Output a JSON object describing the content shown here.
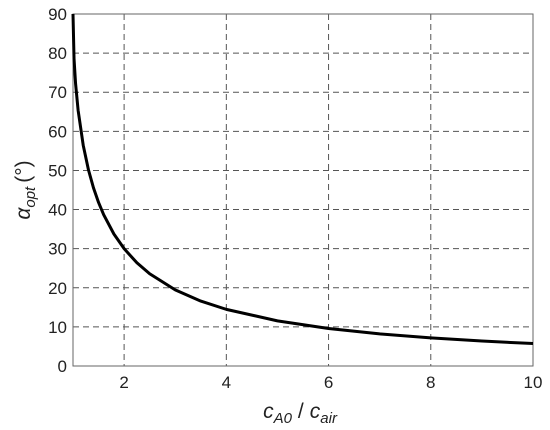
{
  "chart_data": {
    "type": "line",
    "x": [
      1,
      1.02,
      1.05,
      1.1,
      1.2,
      1.3,
      1.4,
      1.5,
      1.6,
      1.8,
      2,
      2.25,
      2.5,
      3,
      3.5,
      4,
      5,
      6,
      7,
      8,
      9,
      10
    ],
    "series": [
      {
        "color": "#000000",
        "values": [
          90,
          78.64,
          72.25,
          65.38,
          56.44,
          50.28,
          45.58,
          41.81,
          38.68,
          33.75,
          30,
          26.39,
          23.58,
          19.47,
          16.6,
          14.48,
          11.54,
          9.59,
          8.21,
          7.18,
          6.38,
          5.74
        ]
      }
    ],
    "xlim": [
      1,
      10
    ],
    "xticks": [
      2,
      4,
      6,
      8,
      10
    ],
    "ylim": [
      0,
      90
    ],
    "yticks": [
      0,
      10,
      20,
      30,
      40,
      50,
      60,
      70,
      80,
      90
    ],
    "grid": true,
    "xlabel": {
      "numerator": "c",
      "numerator_subscript": "A0",
      "separator": "/",
      "denominator": "c",
      "denominator_subscript": "air"
    },
    "ylabel": {
      "symbol": "α",
      "subscript": "opt",
      "unit": "(°)"
    }
  }
}
